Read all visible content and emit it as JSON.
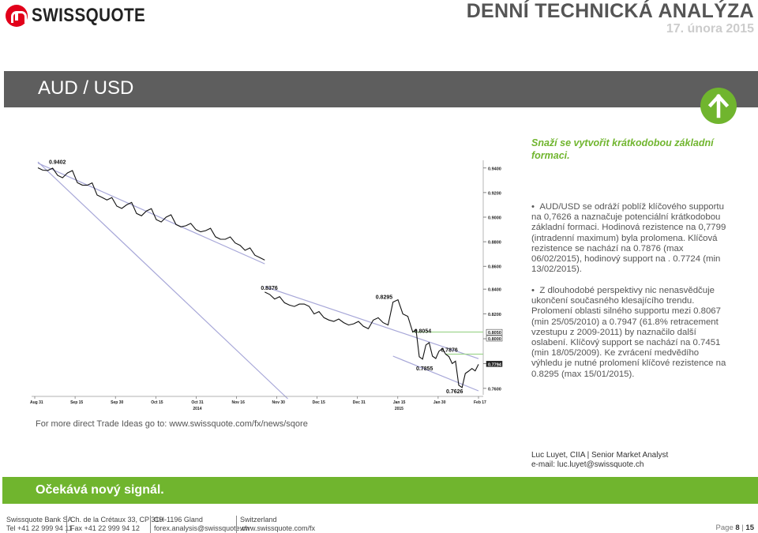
{
  "header": {
    "brand": "SWISSQUOTE",
    "title": "DENNÍ TECHNICKÁ ANALÝZA",
    "date": "17. února 2015"
  },
  "banner": {
    "pair": "AUD / USD",
    "trend_icon": "arrow-up-icon"
  },
  "headline": "Snaží se vytvořit krátkodobou základní formaci.",
  "bullets": [
    {
      "lines": [
        "AUD/USD se odráží poblíž klíčového supportu",
        "na 0,7626 a naznačuje potenciální krátkodobou",
        "základní formaci. Hodinová rezistence na 0,7799",
        "(intradenní maximum) byla prolomena. Klíčová",
        "rezistence se nachází na 0.7876 (max",
        "06/02/2015), hodinový support na . 0.7724 (min",
        "13/02/2015)."
      ]
    },
    {
      "lines": [
        "Z dlouhodobé perspektivy nic nenasvědčuje",
        "ukončení současného klesajícího trendu.",
        "Prolomení oblasti silného  supportu mezi 0.8067",
        "(min 25/05/2010) a 0.7947 (61.8% retracement",
        "vzestupu z 2009-2011) by naznačilo další",
        "oslabení. Klíčový support se nachází na 0.7451",
        "(min 18/05/2009). Ke zvrácení medvědího",
        "výhledu je nutné prolomení klíčové rezistence na",
        "0.8295 (max 15/01/2015)."
      ]
    }
  ],
  "footer_link": "For more direct Trade Ideas go to: www.swissquote.com/fx/news/sqore",
  "analyst": {
    "name": "Luc Luyet, CIIA | Senior Market Analyst",
    "email": "e-mail: luc.luyet@swissquote.ch"
  },
  "outlook": "Očekává nový signál.",
  "footer": {
    "col1": [
      "Swissquote Bank SA",
      "Tel +41 22 999 94 11"
    ],
    "col2": [
      "Ch. de la Crétaux 33, CP 319",
      "Fax +41 22 999 94 12"
    ],
    "col3": [
      "CH-1196 Gland",
      "forex.analysis@swissquote.ch"
    ],
    "col4": [
      "Switzerland",
      "www.swissquote.com/fx"
    ],
    "page_label": "Page",
    "page_num": "8",
    "page_sep": "|",
    "page_total": "15"
  },
  "colors": {
    "green": "#70b52e",
    "banner": "#5e5e5e",
    "resistance_line": "#a7a7d8",
    "support_line": "#9fd58e"
  },
  "chart_data": {
    "type": "line",
    "x_ticks": [
      "Aug 31",
      "Sep 15",
      "Sep 30",
      "Oct 15",
      "Oct 31",
      "Nov 16",
      "Nov 30",
      "Dec 15",
      "Dec 31",
      "Jan 15",
      "Jan 30",
      "Feb 17"
    ],
    "x_year_labels": [
      "2014",
      "2015"
    ],
    "panel1_y_ticks": [
      0.94,
      0.92,
      0.9,
      0.88,
      0.86
    ],
    "panel2_y_ticks": [
      0.84,
      0.82,
      0.8,
      0.78,
      0.76
    ],
    "current_price_labels": [
      "0.8050",
      "0.8000",
      "0.7794"
    ],
    "annotations": [
      "0.9402",
      "0.8376",
      "0.8295",
      "0.8054",
      "0.7876",
      "0.7855",
      "0.7626"
    ],
    "series": [
      {
        "name": "",
        "panel": "top",
        "y_range": [
          0.855,
          0.945
        ],
        "points": [
          [
            0,
            0.9402
          ],
          [
            3,
            0.938
          ],
          [
            6,
            0.934
          ],
          [
            9,
            0.936
          ],
          [
            12,
            0.928
          ],
          [
            15,
            0.926
          ],
          [
            18,
            0.918
          ],
          [
            21,
            0.914
          ],
          [
            24,
            0.909
          ],
          [
            27,
            0.91
          ],
          [
            30,
            0.903
          ],
          [
            33,
            0.905
          ],
          [
            36,
            0.898
          ],
          [
            39,
            0.9
          ],
          [
            42,
            0.894
          ],
          [
            45,
            0.893
          ],
          [
            48,
            0.89
          ],
          [
            51,
            0.889
          ],
          [
            54,
            0.884
          ],
          [
            57,
            0.882
          ],
          [
            60,
            0.879
          ],
          [
            63,
            0.873
          ],
          [
            66,
            0.869
          ],
          [
            69,
            0.865
          ]
        ]
      },
      {
        "name": "",
        "panel": "bottom",
        "y_range": [
          0.758,
          0.842
        ],
        "points": [
          [
            69,
            0.8376
          ],
          [
            72,
            0.832
          ],
          [
            75,
            0.829
          ],
          [
            78,
            0.826
          ],
          [
            81,
            0.828
          ],
          [
            84,
            0.82
          ],
          [
            87,
            0.817
          ],
          [
            90,
            0.814
          ],
          [
            93,
            0.813
          ],
          [
            96,
            0.812
          ],
          [
            99,
            0.81
          ],
          [
            102,
            0.815
          ],
          [
            105,
            0.813
          ],
          [
            108,
            0.8295
          ],
          [
            111,
            0.82
          ],
          [
            114,
            0.8054
          ],
          [
            116,
            0.7855
          ],
          [
            118,
            0.795
          ],
          [
            120,
            0.786
          ],
          [
            122,
            0.79
          ],
          [
            124,
            0.7876
          ],
          [
            126,
            0.78
          ],
          [
            128,
            0.7626
          ],
          [
            130,
            0.772
          ],
          [
            132,
            0.776
          ],
          [
            134,
            0.7794
          ]
        ]
      }
    ]
  }
}
